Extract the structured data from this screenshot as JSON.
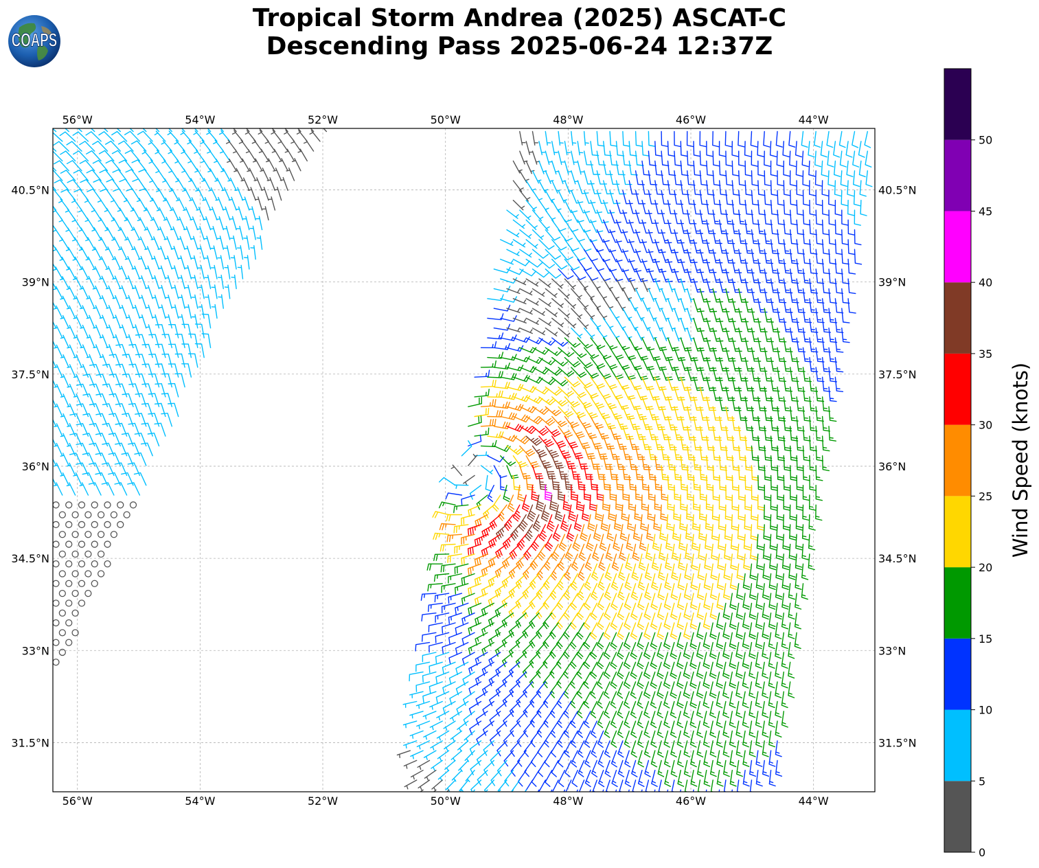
{
  "title": {
    "line1": "Tropical Storm Andrea (2025) ASCAT-C",
    "line2": "Descending Pass 2025-06-24 12:37Z"
  },
  "logo": {
    "text": "COAPS",
    "icon": "globe-logo-icon"
  },
  "map": {
    "lon_range": [
      -56.4,
      -43.0
    ],
    "lat_range": [
      30.7,
      41.5
    ],
    "gridlines": true,
    "x_ticks": [
      {
        "value": -56,
        "label": "56°W"
      },
      {
        "value": -54,
        "label": "54°W"
      },
      {
        "value": -52,
        "label": "52°W"
      },
      {
        "value": -50,
        "label": "50°W"
      },
      {
        "value": -48,
        "label": "48°W"
      },
      {
        "value": -46,
        "label": "46°W"
      },
      {
        "value": -44,
        "label": "44°W"
      }
    ],
    "y_ticks": [
      {
        "value": 40.5,
        "label": "40.5°N"
      },
      {
        "value": 39,
        "label": "39°N"
      },
      {
        "value": 37.5,
        "label": "37.5°N"
      },
      {
        "value": 36,
        "label": "36°N"
      },
      {
        "value": 34.5,
        "label": "34.5°N"
      },
      {
        "value": 33,
        "label": "33°N"
      },
      {
        "value": 31.5,
        "label": "31.5°N"
      }
    ]
  },
  "colorbar": {
    "label": "Wind Speed (knots)",
    "levels": [
      {
        "min": 0,
        "max": 5,
        "color": "#555555"
      },
      {
        "min": 5,
        "max": 10,
        "color": "#00bfff"
      },
      {
        "min": 10,
        "max": 15,
        "color": "#0033ff"
      },
      {
        "min": 15,
        "max": 20,
        "color": "#009900"
      },
      {
        "min": 20,
        "max": 25,
        "color": "#ffd700"
      },
      {
        "min": 25,
        "max": 30,
        "color": "#ff8c00"
      },
      {
        "min": 30,
        "max": 35,
        "color": "#ff0000"
      },
      {
        "min": 35,
        "max": 40,
        "color": "#803a26"
      },
      {
        "min": 40,
        "max": 45,
        "color": "#ff00ff"
      },
      {
        "min": 45,
        "max": 50,
        "color": "#8000b3"
      },
      {
        "min": 50,
        "max": 55,
        "color": "#2b0052"
      }
    ],
    "tick_labels": [
      "0",
      "5",
      "10",
      "15",
      "20",
      "25",
      "30",
      "35",
      "40",
      "45",
      "50"
    ]
  },
  "storm": {
    "center_lon": -49.45,
    "center_lat": 35.85
  },
  "swaths": [
    {
      "name": "west",
      "corners": [
        [
          -56.4,
          41.5
        ],
        [
          -51.8,
          41.5
        ],
        [
          -53.3,
          39.0
        ],
        [
          -56.4,
          32.5
        ]
      ]
    },
    {
      "name": "east",
      "corners": [
        [
          -48.8,
          41.5
        ],
        [
          -43.0,
          41.5
        ],
        [
          -44.6,
          31.0
        ],
        [
          -45.3,
          30.7
        ],
        [
          -50.5,
          30.7
        ],
        [
          -50.6,
          31.5
        ],
        [
          -49.6,
          37.2
        ]
      ]
    }
  ]
}
